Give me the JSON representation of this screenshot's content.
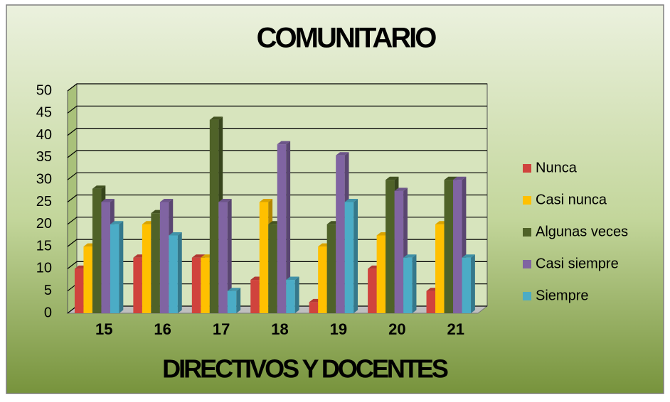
{
  "chart_data": {
    "type": "bar",
    "title": "COMUNITARIO",
    "x_label": "DIRECTIVOS Y DOCENTES",
    "categories": [
      "15",
      "16",
      "17",
      "18",
      "19",
      "20",
      "21"
    ],
    "series": [
      {
        "name": "Nunca",
        "color": "#d0433d",
        "values": [
          10,
          12.5,
          12.5,
          7.5,
          2.5,
          10,
          5
        ]
      },
      {
        "name": "Casi nunca",
        "color": "#ffc000",
        "values": [
          15,
          20,
          12.5,
          25,
          15,
          17.5,
          20
        ]
      },
      {
        "name": "Algunas veces",
        "color": "#4f6228",
        "values": [
          28,
          22.5,
          43.5,
          20,
          20,
          30,
          30
        ]
      },
      {
        "name": "Casi siempre",
        "color": "#8064a2",
        "values": [
          25,
          25,
          25,
          38,
          35.5,
          27.5,
          30
        ]
      },
      {
        "name": "Siempre",
        "color": "#4bacc6",
        "values": [
          20,
          17.5,
          5,
          7.5,
          25,
          12.5,
          12.5
        ]
      }
    ],
    "ylim": [
      0,
      50
    ],
    "yticks": [
      0,
      5,
      10,
      15,
      20,
      25,
      30,
      35,
      40,
      45,
      50
    ],
    "grid": true,
    "legend": "right"
  }
}
